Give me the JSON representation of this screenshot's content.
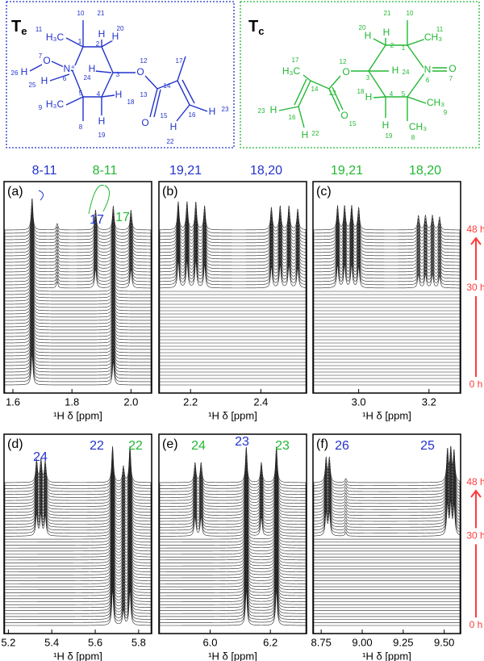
{
  "structures": [
    {
      "title": "T",
      "subscript": "e",
      "color": "#2233cc",
      "labels": [
        "10",
        "21",
        "11",
        "H₃C",
        "H",
        "20",
        "H",
        "1",
        "2",
        "7",
        "O",
        "H",
        "26",
        "N⁺",
        "6",
        "H",
        "25",
        "H",
        "24",
        "3",
        "12",
        "O",
        "17",
        "14",
        "13",
        "H₃C",
        "9",
        "5",
        "4",
        "H",
        "18",
        "O",
        "15",
        "16",
        "H",
        "23",
        "8",
        "H",
        "19",
        "H",
        "22"
      ]
    },
    {
      "title": "T",
      "subscript": "c",
      "color": "#22b833",
      "labels": [
        "21",
        "10",
        "20",
        "H",
        "H",
        "2",
        "1",
        "11",
        "CH₃",
        "17",
        "H₃C",
        "12",
        "O",
        "3",
        "H",
        "24",
        "N",
        "O",
        "6",
        "7",
        "14",
        "13",
        "H",
        "18",
        "5",
        "4",
        "CH₃",
        "9",
        "23",
        "H",
        "16",
        "O",
        "15",
        "H",
        "19",
        "CH₃",
        "8",
        "H",
        "22"
      ]
    }
  ],
  "chart_data": {
    "type": "stacked-spectra",
    "xlabel": "¹H δ [ppm]",
    "time_axis": [
      {
        "value": 48,
        "label": "48 h"
      },
      {
        "value": 30,
        "label": "30 h"
      },
      {
        "value": 0,
        "label": "0 h"
      }
    ],
    "time_color": "#ff3b3b",
    "headers": [
      {
        "text": "8-11",
        "color": "#2233cc"
      },
      {
        "text": "8-11",
        "color": "#22b833"
      },
      {
        "text": "19,21",
        "color": "#2233cc"
      },
      {
        "text": "18,20",
        "color": "#2233cc"
      },
      {
        "text": "19,21",
        "color": "#22b833"
      },
      {
        "text": "18,20",
        "color": "#22b833"
      }
    ],
    "panels": [
      {
        "label": "(a)",
        "xlim": [
          1.57,
          2.07
        ],
        "xticks": [
          1.6,
          1.8,
          {
            "value": 2,
            "label": "2.0"
          }
        ],
        "annotations": [
          {
            "text": "17",
            "color": "#2233cc"
          },
          {
            "text": "17",
            "color": "#22b833"
          }
        ],
        "peaks": [
          {
            "ppm": 1.665,
            "height": 40,
            "from_h": 0
          },
          {
            "ppm": 1.75,
            "height": 8,
            "from_h": 30
          },
          {
            "ppm": 1.88,
            "height": 25,
            "from_h": 30
          },
          {
            "ppm": 1.94,
            "height": 30,
            "from_h": 0
          },
          {
            "ppm": 2.0,
            "height": 25,
            "from_h": 30
          }
        ]
      },
      {
        "label": "(b)",
        "xlim": [
          2.11,
          2.53
        ],
        "xticks": [
          2.2,
          2.4
        ],
        "annotations": [],
        "peaks": [
          {
            "ppm": 2.165,
            "height": 35,
            "from_h": 30
          },
          {
            "ppm": 2.19,
            "height": 35,
            "from_h": 30
          },
          {
            "ppm": 2.215,
            "height": 35,
            "from_h": 30
          },
          {
            "ppm": 2.24,
            "height": 30,
            "from_h": 30
          },
          {
            "ppm": 2.43,
            "height": 28,
            "from_h": 30
          },
          {
            "ppm": 2.455,
            "height": 30,
            "from_h": 30
          },
          {
            "ppm": 2.48,
            "height": 30,
            "from_h": 30
          },
          {
            "ppm": 2.505,
            "height": 26,
            "from_h": 30
          }
        ]
      },
      {
        "label": "(c)",
        "xlim": [
          2.87,
          3.29
        ],
        "xticks": [
          {
            "value": 3,
            "label": "3.0"
          },
          3.2
        ],
        "annotations": [],
        "peaks": [
          {
            "ppm": 2.94,
            "height": 30,
            "from_h": 30
          },
          {
            "ppm": 2.96,
            "height": 30,
            "from_h": 30
          },
          {
            "ppm": 2.98,
            "height": 30,
            "from_h": 30
          },
          {
            "ppm": 3.0,
            "height": 28,
            "from_h": 30
          },
          {
            "ppm": 3.17,
            "height": 18,
            "from_h": 30
          },
          {
            "ppm": 3.19,
            "height": 18,
            "from_h": 30
          },
          {
            "ppm": 3.21,
            "height": 18,
            "from_h": 30
          },
          {
            "ppm": 3.23,
            "height": 16,
            "from_h": 30
          }
        ]
      },
      {
        "label": "(d)",
        "xlim": [
          5.18,
          5.86
        ],
        "xticks": [
          5.2,
          5.4,
          5.6,
          5.8
        ],
        "annotations": [
          {
            "text": "24",
            "color": "#2233cc"
          },
          {
            "text": "22",
            "color": "#2233cc"
          },
          {
            "text": "22",
            "color": "#22b833"
          }
        ],
        "peaks": [
          {
            "ppm": 5.33,
            "height": 28,
            "from_h": 30
          },
          {
            "ppm": 5.35,
            "height": 28,
            "from_h": 30
          },
          {
            "ppm": 5.37,
            "height": 26,
            "from_h": 30
          },
          {
            "ppm": 5.68,
            "height": 45,
            "from_h": 0
          },
          {
            "ppm": 5.73,
            "height": 20,
            "from_h": 0
          },
          {
            "ppm": 5.76,
            "height": 45,
            "from_h": 0
          }
        ]
      },
      {
        "label": "(e)",
        "xlim": [
          5.83,
          6.32
        ],
        "xticks": [
          {
            "value": 6,
            "label": "6.0"
          },
          6.2
        ],
        "annotations": [
          {
            "text": "24",
            "color": "#22b833"
          },
          {
            "text": "23",
            "color": "#2233cc"
          },
          {
            "text": "23",
            "color": "#22b833"
          }
        ],
        "peaks": [
          {
            "ppm": 5.95,
            "height": 25,
            "from_h": 30
          },
          {
            "ppm": 5.97,
            "height": 25,
            "from_h": 30
          },
          {
            "ppm": 6.12,
            "height": 45,
            "from_h": 0
          },
          {
            "ppm": 6.17,
            "height": 25,
            "from_h": 30
          },
          {
            "ppm": 6.22,
            "height": 45,
            "from_h": 0
          }
        ]
      },
      {
        "label": "(f)",
        "xlim": [
          8.7,
          9.6
        ],
        "xticks": [
          8.75,
          {
            "value": 9,
            "label": "9.00"
          },
          9.25,
          {
            "value": 9.5,
            "label": "9.50"
          }
        ],
        "annotations": [
          {
            "text": "26",
            "color": "#2233cc"
          },
          {
            "text": "25",
            "color": "#2233cc"
          }
        ],
        "peaks": [
          {
            "ppm": 8.78,
            "height": 30,
            "from_h": 30
          },
          {
            "ppm": 8.8,
            "height": 30,
            "from_h": 30
          },
          {
            "ppm": 8.9,
            "height": 5,
            "from_h": 30
          },
          {
            "ppm": 9.52,
            "height": 40,
            "from_h": 30
          },
          {
            "ppm": 9.54,
            "height": 40,
            "from_h": 30
          },
          {
            "ppm": 9.56,
            "height": 38,
            "from_h": 30
          }
        ]
      }
    ]
  }
}
